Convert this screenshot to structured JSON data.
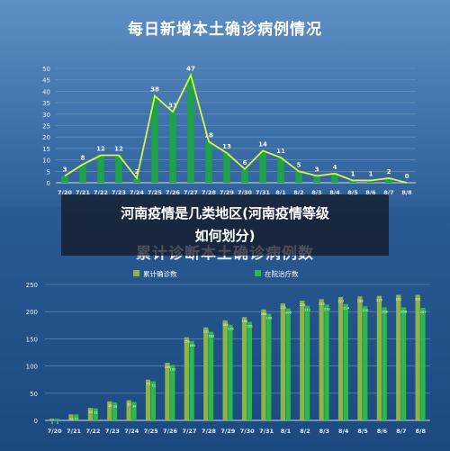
{
  "overlay": {
    "line1": "河南疫情是几类地区(河南疫情等级",
    "line2": "如何划分)"
  },
  "colors": {
    "green": "#1fa34a",
    "green_dark": "#168a3c",
    "lime_line": "#d4f54a",
    "olive": "#8bb544",
    "bright_green": "#2db84b",
    "grid": "#6f93bf",
    "axis_text": "#e6eef8",
    "white": "#ffffff"
  },
  "chart_data": [
    {
      "type": "bar",
      "title": "每日新增本土确诊病例情况",
      "categories": [
        "7/20",
        "7/21",
        "7/22",
        "7/23",
        "7/24",
        "7/25",
        "7/26",
        "7/27",
        "7/28",
        "7/29",
        "7/30",
        "7/31",
        "8/1",
        "8/2",
        "8/3",
        "8/4",
        "8/5",
        "8/6",
        "8/7",
        "8/8"
      ],
      "values": [
        3,
        8,
        12,
        12,
        2,
        38,
        31,
        47,
        18,
        13,
        6,
        14,
        11,
        5,
        3,
        4,
        1,
        1,
        2,
        0
      ],
      "overlay_line": true,
      "ylim": [
        0,
        50
      ],
      "yticks": [
        0,
        5,
        10,
        15,
        20,
        25,
        30,
        35,
        40,
        45,
        50
      ],
      "grid": true
    },
    {
      "type": "bar",
      "title": "累计诊断本土确诊病例数",
      "categories": [
        "7/20",
        "7/21",
        "7/22",
        "7/23",
        "7/24",
        "7/25",
        "7/26",
        "7/27",
        "7/28",
        "7/29",
        "7/30",
        "7/31",
        "8/1",
        "8/2",
        "8/3",
        "8/4",
        "8/5",
        "8/6",
        "8/7",
        "8/8"
      ],
      "series": [
        {
          "name": "累计确诊数",
          "values": [
            3,
            11,
            23,
            35,
            37,
            75,
            106,
            153,
            171,
            184,
            190,
            204,
            215,
            220,
            223,
            227,
            228,
            229,
            231,
            231
          ]
        },
        {
          "name": "在院治疗数",
          "values": [
            3,
            11,
            22,
            33,
            34,
            72,
            102,
            146,
            163,
            176,
            181,
            196,
            206,
            211,
            213,
            214,
            210,
            208,
            208,
            207
          ]
        }
      ],
      "ylim": [
        0,
        250
      ],
      "yticks": [
        0,
        50,
        100,
        150,
        200,
        250
      ],
      "legend": "top",
      "grid": true
    }
  ]
}
